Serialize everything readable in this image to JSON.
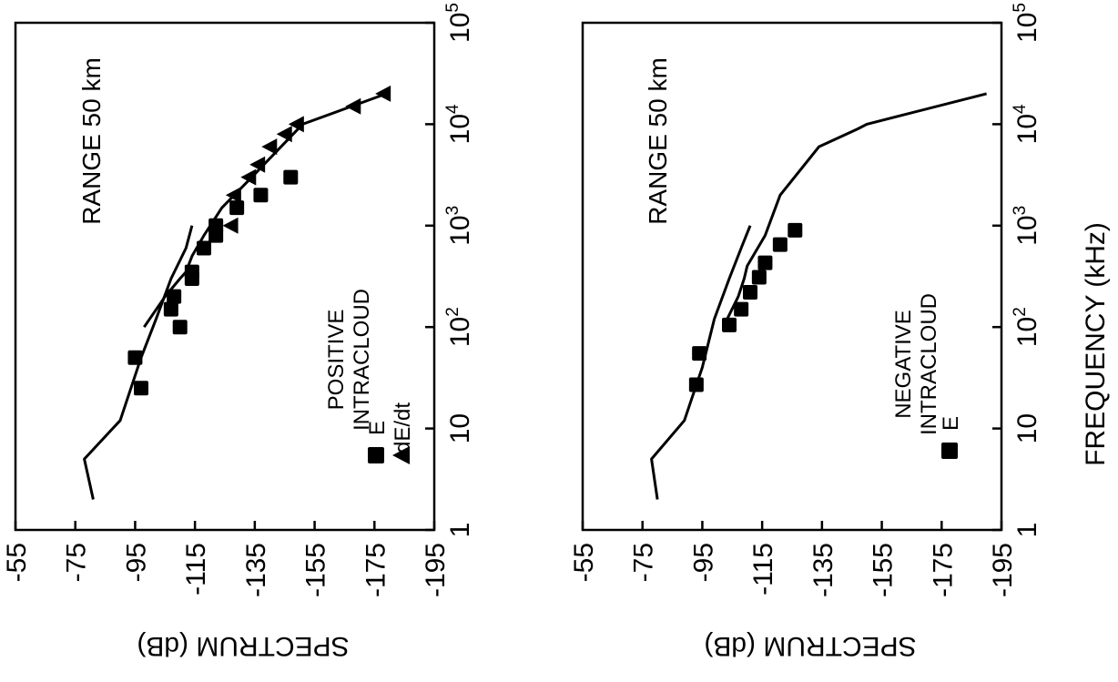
{
  "chart_data": [
    {
      "type": "scatter",
      "orientation": "rotated-90",
      "x_axis": {
        "label": "",
        "scale": "log",
        "range": [
          1,
          100000
        ],
        "ticks": [
          {
            "base": "1",
            "exp": ""
          },
          {
            "base": "10",
            "exp": ""
          },
          {
            "base": "10",
            "exp": "2"
          },
          {
            "base": "10",
            "exp": "3"
          },
          {
            "base": "10",
            "exp": "4"
          },
          {
            "base": "10",
            "exp": "5"
          }
        ]
      },
      "y_axis": {
        "label": "SPECTRUM (dB)",
        "range": [
          -55,
          -195
        ],
        "ticks": [
          "-55",
          "-75",
          "-95",
          "-115",
          "-135",
          "-155",
          "-175",
          "-195"
        ]
      },
      "annotation": "RANGE 50 km",
      "legend_title": [
        "POSITIVE",
        "INTRACLOUD"
      ],
      "legend_items": [
        "E",
        "dE/dt"
      ],
      "series": [
        {
          "name": "E",
          "marker": "square",
          "points": [
            [
              25,
              -97
            ],
            [
              50,
              -95
            ],
            [
              100,
              -110
            ],
            [
              150,
              -107
            ],
            [
              200,
              -108
            ],
            [
              300,
              -114
            ],
            [
              350,
              -114
            ],
            [
              600,
              -118
            ],
            [
              800,
              -122
            ],
            [
              1000,
              -122
            ],
            [
              1500,
              -129
            ],
            [
              2000,
              -137
            ],
            [
              3000,
              -147
            ]
          ]
        },
        {
          "name": "dE/dt",
          "marker": "triangle",
          "points": [
            [
              1000,
              -127
            ],
            [
              2000,
              -128
            ],
            [
              3000,
              -133
            ],
            [
              4000,
              -136
            ],
            [
              6000,
              -140
            ],
            [
              8000,
              -145
            ],
            [
              10000,
              -149
            ],
            [
              15000,
              -168
            ],
            [
              20000,
              -178
            ]
          ]
        },
        {
          "name": "",
          "type": "line",
          "points": [
            [
              2,
              -81
            ],
            [
              5,
              -78
            ],
            [
              12,
              -90
            ],
            [
              50,
              -97
            ],
            [
              120,
              -102
            ],
            [
              300,
              -107
            ],
            [
              600,
              -112
            ],
            [
              1000,
              -114
            ]
          ]
        },
        {
          "name": "",
          "type": "line",
          "points": [
            [
              100,
              -98
            ],
            [
              200,
              -105
            ],
            [
              300,
              -110
            ],
            [
              350,
              -112
            ],
            [
              500,
              -114
            ],
            [
              800,
              -118
            ],
            [
              1500,
              -124
            ],
            [
              3000,
              -134
            ],
            [
              10000,
              -151
            ],
            [
              20000,
              -179
            ]
          ]
        }
      ]
    },
    {
      "type": "scatter",
      "orientation": "rotated-90",
      "x_axis": {
        "label": "FREQUENCY (kHz)",
        "scale": "log",
        "range": [
          1,
          100000
        ],
        "ticks": [
          {
            "base": "1",
            "exp": ""
          },
          {
            "base": "10",
            "exp": ""
          },
          {
            "base": "10",
            "exp": "2"
          },
          {
            "base": "10",
            "exp": "3"
          },
          {
            "base": "10",
            "exp": "4"
          },
          {
            "base": "10",
            "exp": "5"
          }
        ]
      },
      "y_axis": {
        "label": "SPECTRUM (dB)",
        "range": [
          -55,
          -195
        ],
        "ticks": [
          "-55",
          "-75",
          "-95",
          "-115",
          "-135",
          "-155",
          "-175",
          "-195"
        ]
      },
      "annotation": "RANGE 50 km",
      "legend_title": [
        "NEGATIVE",
        "INTRACLOUD"
      ],
      "legend_items": [
        "E"
      ],
      "series": [
        {
          "name": "E",
          "marker": "square",
          "points": [
            [
              27,
              -93
            ],
            [
              55,
              -94
            ],
            [
              105,
              -104
            ],
            [
              150,
              -108
            ],
            [
              220,
              -111
            ],
            [
              310,
              -114
            ],
            [
              430,
              -116
            ],
            [
              650,
              -121
            ],
            [
              900,
              -126
            ]
          ]
        },
        {
          "name": "",
          "type": "line",
          "points": [
            [
              2,
              -80
            ],
            [
              5,
              -78
            ],
            [
              12,
              -89
            ],
            [
              40,
              -95
            ],
            [
              120,
              -99
            ],
            [
              300,
              -104
            ],
            [
              600,
              -108
            ],
            [
              1000,
              -111
            ]
          ]
        },
        {
          "name": "",
          "type": "line",
          "points": [
            [
              100,
              -102
            ],
            [
              200,
              -107
            ],
            [
              300,
              -109
            ],
            [
              400,
              -110
            ],
            [
              800,
              -116
            ],
            [
              2000,
              -121
            ],
            [
              6000,
              -134
            ],
            [
              9000,
              -147
            ],
            [
              10000,
              -150
            ],
            [
              20000,
              -190
            ]
          ]
        }
      ]
    }
  ]
}
